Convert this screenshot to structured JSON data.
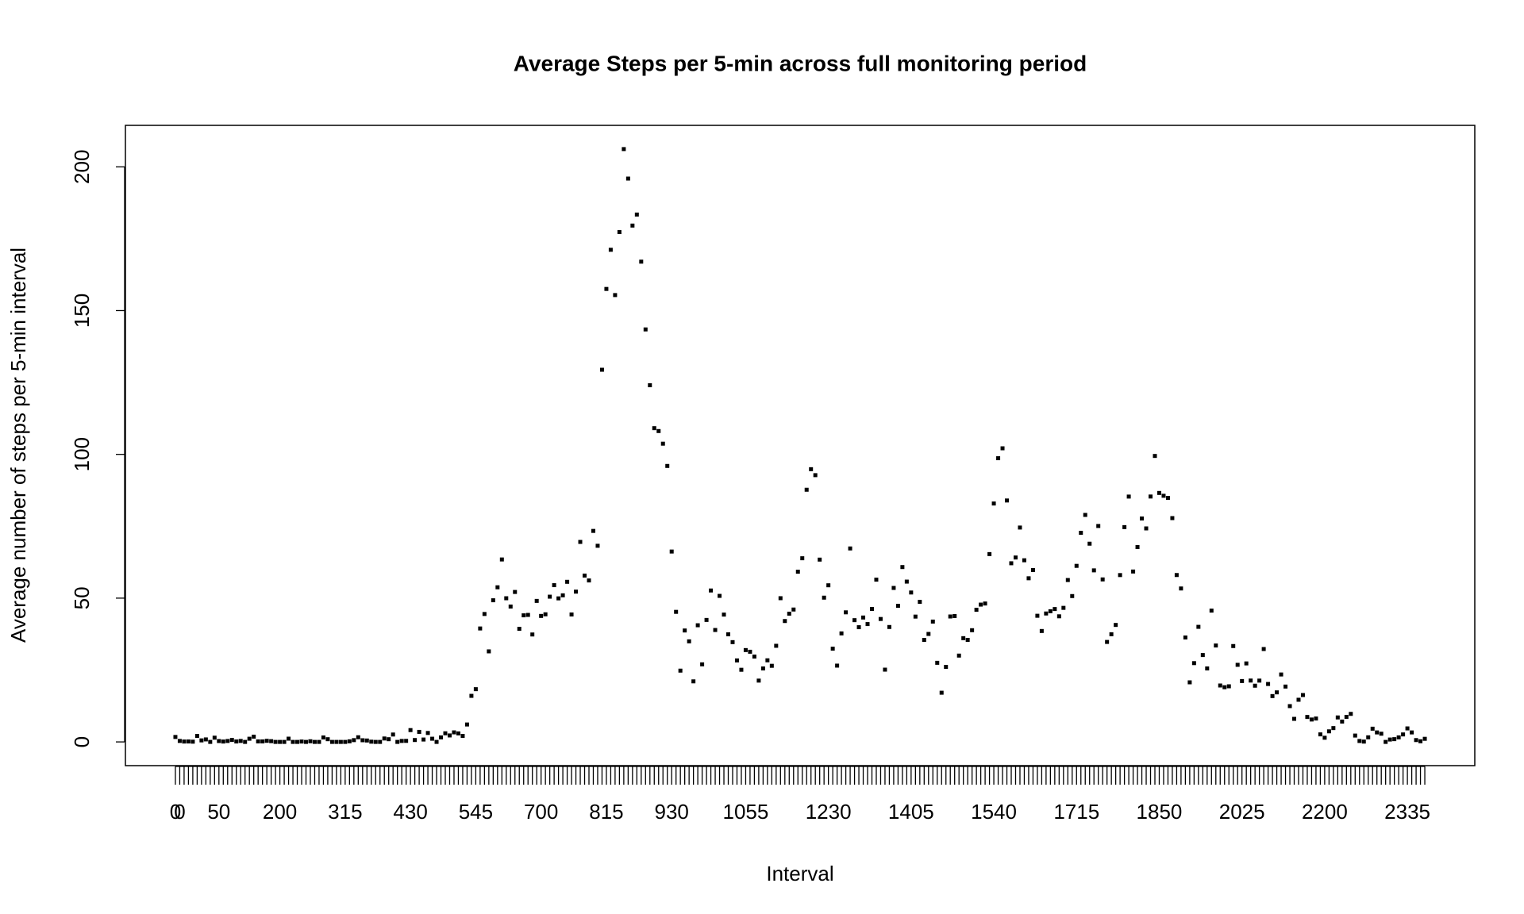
{
  "chart_data": {
    "type": "scatter",
    "title": "Average Steps per 5-min across full monitoring period",
    "x_label": "Interval",
    "y_label": "Average number of steps per 5-min interval",
    "color": "#000000",
    "ylim": [
      -8.25,
      214.42
    ],
    "yticks": [
      0,
      50,
      100,
      150,
      200
    ],
    "categories": [
      "0",
      "0",
      null,
      null,
      null,
      null,
      null,
      null,
      null,
      null,
      "50",
      null,
      null,
      null,
      null,
      null,
      null,
      null,
      null,
      null,
      null,
      null,
      null,
      null,
      "200",
      null,
      null,
      null,
      null,
      null,
      null,
      null,
      null,
      null,
      null,
      null,
      null,
      null,
      null,
      "315",
      null,
      null,
      null,
      null,
      null,
      null,
      null,
      null,
      null,
      null,
      null,
      null,
      null,
      null,
      "430",
      null,
      null,
      null,
      null,
      null,
      null,
      null,
      null,
      null,
      null,
      null,
      null,
      null,
      null,
      "545",
      null,
      null,
      null,
      null,
      null,
      null,
      null,
      null,
      null,
      null,
      null,
      null,
      null,
      null,
      "700",
      null,
      null,
      null,
      null,
      null,
      null,
      null,
      null,
      null,
      null,
      null,
      null,
      null,
      null,
      "815",
      null,
      null,
      null,
      null,
      null,
      null,
      null,
      null,
      null,
      null,
      null,
      null,
      null,
      null,
      "930",
      null,
      null,
      null,
      null,
      null,
      null,
      null,
      null,
      null,
      null,
      null,
      null,
      null,
      null,
      null,
      null,
      "1055",
      null,
      null,
      null,
      null,
      null,
      null,
      null,
      null,
      null,
      null,
      null,
      null,
      null,
      null,
      null,
      null,
      null,
      null,
      "1230",
      null,
      null,
      null,
      null,
      null,
      null,
      null,
      null,
      null,
      null,
      null,
      null,
      null,
      null,
      null,
      null,
      null,
      null,
      "1405",
      null,
      null,
      null,
      null,
      null,
      null,
      null,
      null,
      null,
      null,
      null,
      null,
      null,
      null,
      null,
      null,
      null,
      null,
      "1540",
      null,
      null,
      null,
      null,
      null,
      null,
      null,
      null,
      null,
      null,
      null,
      null,
      null,
      null,
      null,
      null,
      null,
      null,
      "1715",
      null,
      null,
      null,
      null,
      null,
      null,
      null,
      null,
      null,
      null,
      null,
      null,
      null,
      null,
      null,
      null,
      null,
      null,
      "1850",
      null,
      null,
      null,
      null,
      null,
      null,
      null,
      null,
      null,
      null,
      null,
      null,
      null,
      null,
      null,
      null,
      null,
      null,
      "2025",
      null,
      null,
      null,
      null,
      null,
      null,
      null,
      null,
      null,
      null,
      null,
      null,
      null,
      null,
      null,
      null,
      null,
      null,
      "2200",
      null,
      null,
      null,
      null,
      null,
      null,
      null,
      null,
      null,
      null,
      null,
      null,
      null,
      null,
      null,
      null,
      null,
      null,
      "2335",
      null,
      null,
      null,
      null
    ],
    "values": [
      1.72,
      0.34,
      0.13,
      0.15,
      0.08,
      2.09,
      0.53,
      0.87,
      0,
      1.47,
      0.3,
      0.13,
      0.32,
      0.68,
      0.15,
      0.34,
      0,
      1.11,
      1.83,
      0.17,
      0.17,
      0.38,
      0.26,
      0,
      0,
      0,
      1.13,
      0,
      0,
      0.13,
      0,
      0.23,
      0,
      0,
      1.55,
      0.94,
      0,
      0,
      0,
      0,
      0.21,
      0.62,
      1.62,
      0.58,
      0.49,
      0.08,
      0,
      0,
      1.19,
      0.94,
      2.57,
      0,
      0.34,
      0.36,
      4.11,
      0.66,
      3.49,
      0.83,
      3.11,
      1.11,
      0,
      1.57,
      3.0,
      2.25,
      3.32,
      2.96,
      2.09,
      6.06,
      16.02,
      18.34,
      39.45,
      44.49,
      31.49,
      49.26,
      53.77,
      63.45,
      49.96,
      47.08,
      52.15,
      39.34,
      44.02,
      44.17,
      37.36,
      49.04,
      43.81,
      44.38,
      50.51,
      54.51,
      49.92,
      50.98,
      55.68,
      44.32,
      52.26,
      69.55,
      57.85,
      56.15,
      73.38,
      68.21,
      129.43,
      157.53,
      171.15,
      155.4,
      177.3,
      206.17,
      195.92,
      179.57,
      183.4,
      167.02,
      143.45,
      124.04,
      109.11,
      108.11,
      103.72,
      95.97,
      66.21,
      45.23,
      24.79,
      38.75,
      34.98,
      21.06,
      40.57,
      26.98,
      42.42,
      52.66,
      38.92,
      50.79,
      44.28,
      37.42,
      34.7,
      28.34,
      25.09,
      31.94,
      31.36,
      29.68,
      21.32,
      25.55,
      28.38,
      26.47,
      33.43,
      49.98,
      42.04,
      44.6,
      46.04,
      59.19,
      63.87,
      87.7,
      94.85,
      92.77,
      63.4,
      50.17,
      54.47,
      32.42,
      26.53,
      37.74,
      45.06,
      67.28,
      42.34,
      39.89,
      43.26,
      40.98,
      46.25,
      56.43,
      42.75,
      25.13,
      39.96,
      53.55,
      47.32,
      60.81,
      55.75,
      51.96,
      43.58,
      48.7,
      35.47,
      37.55,
      41.85,
      27.51,
      17.11,
      26.08,
      43.62,
      43.77,
      30.02,
      36.08,
      35.49,
      38.85,
      45.96,
      47.75,
      48.13,
      65.32,
      82.91,
      98.66,
      102.11,
      83.96,
      62.13,
      64.13,
      74.55,
      63.17,
      56.91,
      59.77,
      43.87,
      38.57,
      44.66,
      45.45,
      46.21,
      43.68,
      46.62,
      56.3,
      50.72,
      61.23,
      72.72,
      78.94,
      68.94,
      59.66,
      75.09,
      56.51,
      34.77,
      37.45,
      40.68,
      58.02,
      74.7,
      85.32,
      59.26,
      67.77,
      77.7,
      74.25,
      85.34,
      99.45,
      86.58,
      85.6,
      84.87,
      77.83,
      58.04,
      53.36,
      36.32,
      20.72,
      27.4,
      40.02,
      30.21,
      25.55,
      45.66,
      33.53,
      19.62,
      19.02,
      19.34,
      33.34,
      26.81,
      21.17,
      27.3,
      21.34,
      19.55,
      21.32,
      32.3,
      20.15,
      15.94,
      17.23,
      23.45,
      19.25,
      12.45,
      8.02,
      14.66,
      16.3,
      8.68,
      7.79,
      8.13,
      2.62,
      1.45,
      3.68,
      4.81,
      8.51,
      7.08,
      8.7,
      9.75,
      2.21,
      0.32,
      0.11,
      1.6,
      4.6,
      3.3,
      2.85,
      0,
      0.83,
      0.96,
      1.58,
      2.6,
      4.7,
      3.3,
      0.64,
      0.23,
      1.08
    ]
  }
}
